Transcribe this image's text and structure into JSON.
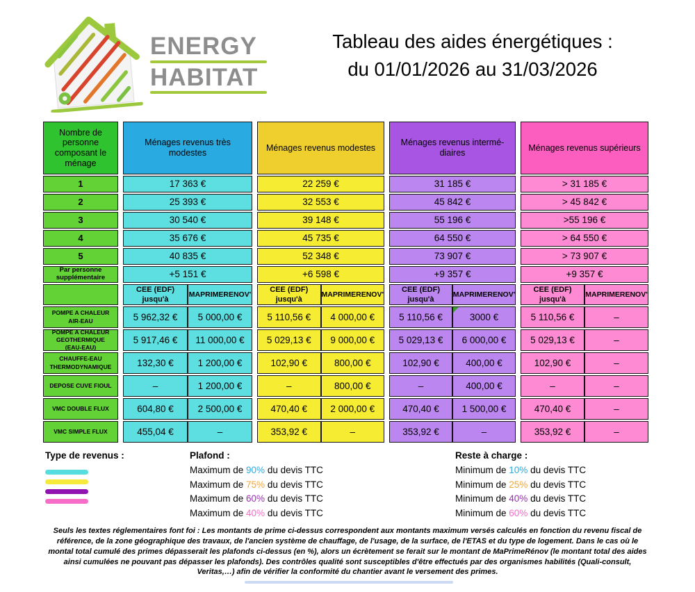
{
  "logo": {
    "name_line1": "ENERGY",
    "name_line2": "HABITAT",
    "text_color": "#8d8d8d",
    "accent_green": "#a3c93a"
  },
  "title": {
    "line1": "Tableau des aides énergétiques :",
    "line2": "du 01/01/2026 au 31/03/2026"
  },
  "table": {
    "columns": [
      {
        "id": "menage",
        "header": "Nombre de\npersonne\ncomposant le\nménage",
        "header_bg": "#2fc42f",
        "cell_bg": "#63d236"
      },
      {
        "id": "tres-modestes",
        "header": "Ménages revenus très\nmodestes",
        "header_bg": "#29abe2",
        "cell_bg": "#5ddfe1"
      },
      {
        "id": "modestes",
        "header": "Ménages revenus modestes",
        "header_bg": "#eecf2e",
        "cell_bg": "#f6ec31"
      },
      {
        "id": "intermediaires",
        "header": "Ménages revenus intermé-\ndiaires",
        "header_bg": "#a755e2",
        "cell_bg": "#bc86f0"
      },
      {
        "id": "superieurs",
        "header": "Ménages revenus supérieurs",
        "header_bg": "#fc5ec0",
        "cell_bg": "#ff8ad4"
      }
    ],
    "income_rows": [
      {
        "label": "1",
        "values": [
          "17 363 €",
          "22 259 €",
          "31 185 €",
          "> 31 185 €"
        ]
      },
      {
        "label": "2",
        "values": [
          "25 393 €",
          "32 553 €",
          "45 842 €",
          "> 45 842 €"
        ]
      },
      {
        "label": "3",
        "values": [
          "30 540 €",
          "39 148 €",
          "55 196 €",
          ">55 196 €"
        ]
      },
      {
        "label": "4",
        "values": [
          "35 676 €",
          "45 735 €",
          "64 550 €",
          "> 64 550 €"
        ]
      },
      {
        "label": "5",
        "values": [
          "40 835 €",
          "52 348 €",
          "73 907 €",
          "> 73 907 €"
        ]
      },
      {
        "label": "Par personne\nsupplémentaire",
        "values": [
          "+5 151 €",
          "+6 598 €",
          "+9 357 €",
          "+9 357 €"
        ]
      }
    ],
    "subheader": {
      "cee": "CEE (EDF)\njusqu'à",
      "mpr": "MAPRIMERENOV'"
    },
    "aid_rows": [
      {
        "label": "POMPE A CHALEUR\nAIR-EAU",
        "cells": [
          "5 962,32 €",
          "5 000,00 €",
          "5 110,56 €",
          "4 000,00 €",
          "5 110,56 €",
          "3000 €",
          "5 110,56 €",
          "–"
        ],
        "marker_index": 5
      },
      {
        "label": "POMPE A CHALEUR\nGEOTHERMIQUE\n(EAU-EAU)",
        "cells": [
          "5 917,46 €",
          "11 000,00 €",
          "5 029,13 €",
          "9 000,00 €",
          "5 029,13 €",
          "6 000,00 €",
          "5 029,13 €",
          "–"
        ]
      },
      {
        "label": "CHAUFFE-EAU\nTHERMODYNAMIQUE",
        "cells": [
          "132,30 €",
          "1 200,00 €",
          "102,90 €",
          "800,00 €",
          "102,90 €",
          "400,00 €",
          "102,90 €",
          "–"
        ]
      },
      {
        "label": "DEPOSE CUVE FIOUL",
        "cells": [
          "–",
          "1 200,00 €",
          "–",
          "800,00 €",
          "–",
          "400,00 €",
          "–",
          "–"
        ]
      },
      {
        "label": "VMC DOUBLE FLUX",
        "cells": [
          "604,80 €",
          "2 500,00 €",
          "470,40 €",
          "2 000,00 €",
          "470,40 €",
          "1 500,00 €",
          "470,40 €",
          "–"
        ]
      },
      {
        "label": "VMC SIMPLE FLUX",
        "cells": [
          "455,04 €",
          "–",
          "353,92 €",
          "–",
          "353,92 €",
          "–",
          "353,92 €",
          "–"
        ]
      }
    ]
  },
  "legend": {
    "revenus_title": "Type de revenus :",
    "swatches": [
      "#55dde0",
      "#f7e93c",
      "#9012b0",
      "#f76ec9"
    ],
    "plafond_title": "Plafond  :",
    "reste_title": "Reste à charge :",
    "max_prefix": "Maximum de",
    "min_prefix": "Minimum de",
    "suffix": "du devis TTC",
    "plafond_rows": [
      {
        "pct": "90%",
        "color": "#29abe2"
      },
      {
        "pct": "75%",
        "color": "#f5a733"
      },
      {
        "pct": "60%",
        "color": "#9b30b5"
      },
      {
        "pct": "40%",
        "color": "#f76ec9"
      }
    ],
    "reste_rows": [
      {
        "pct": "10%",
        "color": "#29abe2"
      },
      {
        "pct": "25%",
        "color": "#f5a733"
      },
      {
        "pct": "40%",
        "color": "#9b30b5"
      },
      {
        "pct": "60%",
        "color": "#f76ec9"
      }
    ]
  },
  "disclaimer": "Seuls les textes réglementaires font foi : Les montants de prime ci-dessus correspondent aux montants maximum versés calculés en fonction du revenu fiscal de référence, de la zone géographique des travaux, de l'ancien système de chauffage, de l'usage, de la surface, de l'ETAS et du type de logement. Dans le cas où le montal total cumulé des primes dépasserait les plafonds ci-dessus (en %), alors un écrètement se ferait sur le montant de  MaPrimeRénov (le montant total des aides ainsi cumulées ne pouvant pas dépasser les plafonds). Des contrôles qualité sont susceptibles d'être effectués par des organismes habilités (Quali-consult, Veritas,…) afin de vérifier la conformité du chantier avant le versement des primes."
}
